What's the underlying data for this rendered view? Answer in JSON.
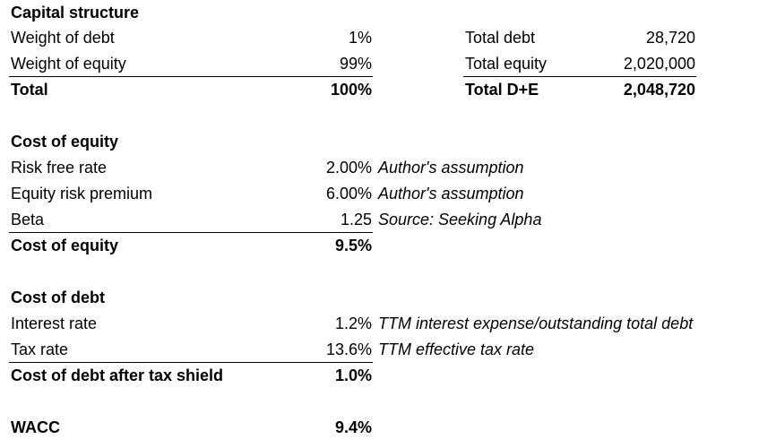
{
  "capital_structure": {
    "heading": "Capital structure",
    "weight_debt_label": "Weight of debt",
    "weight_debt_value": "1%",
    "weight_equity_label": "Weight of equity",
    "weight_equity_value": "99%",
    "total_label": "Total",
    "total_value": "100%",
    "total_debt_label": "Total debt",
    "total_debt_value": "28,720",
    "total_equity_label": "Total equity",
    "total_equity_value": "2,020,000",
    "total_de_label": "Total D+E",
    "total_de_value": "2,048,720"
  },
  "cost_of_equity": {
    "heading": "Cost of equity",
    "risk_free_label": "Risk free rate",
    "risk_free_value": "2.00%",
    "risk_free_note": "Author's assumption",
    "erp_label": "Equity risk premium",
    "erp_value": "6.00%",
    "erp_note": "Author's assumption",
    "beta_label": "Beta",
    "beta_value": "1.25",
    "beta_note": "Source: Seeking Alpha",
    "result_label": "Cost of equity",
    "result_value": "9.5%"
  },
  "cost_of_debt": {
    "heading": "Cost of debt",
    "interest_label": "Interest rate",
    "interest_value": "1.2%",
    "interest_note": "TTM interest expense/outstanding total debt",
    "tax_label": "Tax rate",
    "tax_value": "13.6%",
    "tax_note": "TTM effective tax rate",
    "result_label": "Cost of debt after tax shield",
    "result_value": "1.0%"
  },
  "wacc": {
    "label": "WACC",
    "value": "9.4%"
  }
}
